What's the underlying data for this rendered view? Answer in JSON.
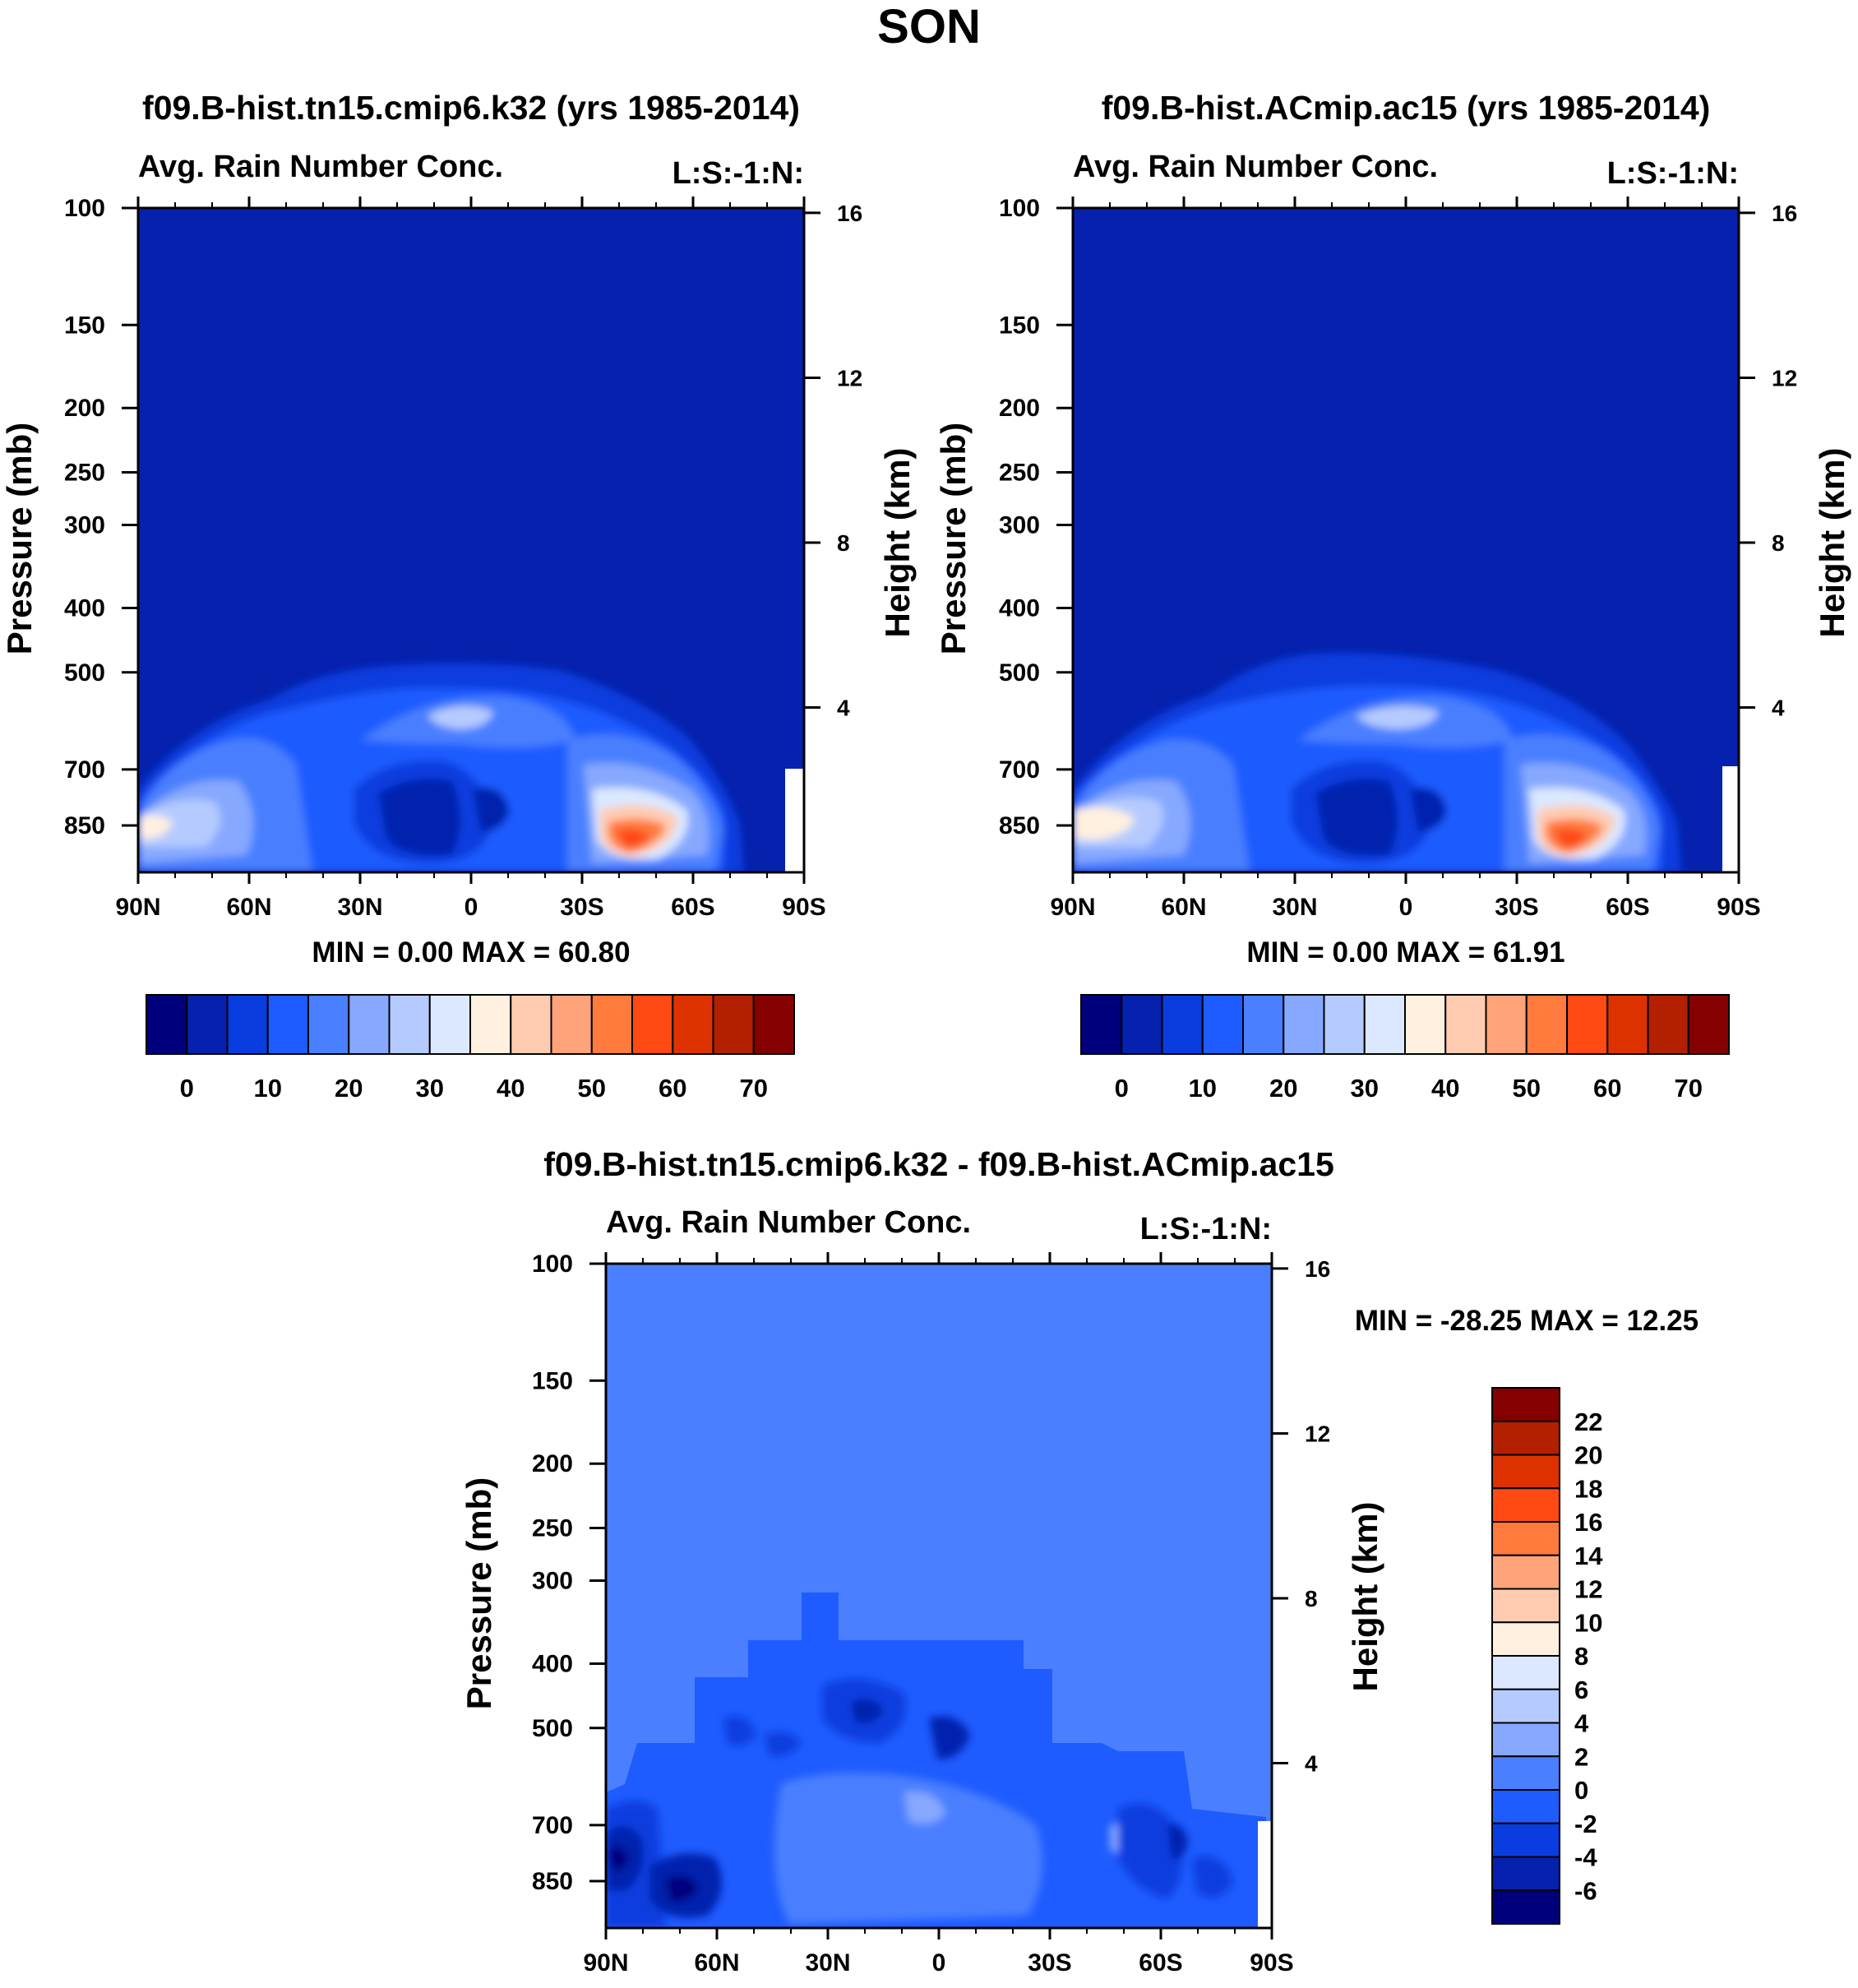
{
  "figure": {
    "title": "SON"
  },
  "colors": {
    "abs_palette": [
      "#00007d",
      "#0521ad",
      "#0a3ddf",
      "#1f5cff",
      "#4a7fff",
      "#86a8ff",
      "#b5cbff",
      "#dbe8ff",
      "#fff0df",
      "#ffcbb0",
      "#ffa47a",
      "#ff7a3d",
      "#ff4a14",
      "#dd3200",
      "#b22000",
      "#850000"
    ],
    "diff_palette": [
      "#00007d",
      "#0521ad",
      "#0a3ddf",
      "#1f5cff",
      "#4a7fff",
      "#86a8ff",
      "#b5cbff",
      "#dbe8ff",
      "#fff0df",
      "#ffcbb0",
      "#ffa47a",
      "#ff7a3d",
      "#ff4a14",
      "#dd3200",
      "#b22000",
      "#850000"
    ]
  },
  "chart_data": [
    {
      "type": "heatmap",
      "title": "f09.B-hist.tn15.cmip6.k32 (yrs 1985-2014)",
      "subtitle_left": "Avg. Rain Number Conc.",
      "subtitle_right": "L:S:-1:N:",
      "ylabel": "Pressure (mb)",
      "ylabel_right": "Height (km)",
      "x_ticks": [
        "90N",
        "60N",
        "30N",
        "0",
        "30S",
        "60S",
        "90S"
      ],
      "x_lim": [
        90,
        -90
      ],
      "y_ticks": [
        100,
        150,
        200,
        250,
        300,
        400,
        500,
        700,
        850
      ],
      "y_lim": [
        100,
        1000
      ],
      "height_ticks": [
        16,
        12,
        8,
        4
      ],
      "stats": "MIN =    0.00   MAX =  60.80",
      "min": 0.0,
      "max": 60.8,
      "colorbar_labels": [
        "0",
        "10",
        "20",
        "30",
        "40",
        "50",
        "60",
        "70"
      ],
      "colorbar_levels": [
        0,
        5,
        10,
        15,
        20,
        25,
        30,
        35,
        40,
        45,
        50,
        55,
        60,
        65,
        70
      ]
    },
    {
      "type": "heatmap",
      "title": "f09.B-hist.ACmip.ac15 (yrs 1985-2014)",
      "subtitle_left": "Avg. Rain Number Conc.",
      "subtitle_right": "L:S:-1:N:",
      "ylabel": "Pressure (mb)",
      "ylabel_right": "Height (km)",
      "x_ticks": [
        "90N",
        "60N",
        "30N",
        "0",
        "30S",
        "60S",
        "90S"
      ],
      "x_lim": [
        90,
        -90
      ],
      "y_ticks": [
        100,
        150,
        200,
        250,
        300,
        400,
        500,
        700,
        850
      ],
      "y_lim": [
        100,
        1000
      ],
      "height_ticks": [
        16,
        12,
        8,
        4
      ],
      "stats": "MIN =    0.00   MAX =  61.91",
      "min": 0.0,
      "max": 61.91,
      "colorbar_labels": [
        "0",
        "10",
        "20",
        "30",
        "40",
        "50",
        "60",
        "70"
      ],
      "colorbar_levels": [
        0,
        5,
        10,
        15,
        20,
        25,
        30,
        35,
        40,
        45,
        50,
        55,
        60,
        65,
        70
      ]
    },
    {
      "type": "heatmap",
      "title": "f09.B-hist.tn15.cmip6.k32 - f09.B-hist.ACmip.ac15",
      "subtitle_left": "Avg. Rain Number Conc.",
      "subtitle_right": "L:S:-1:N:",
      "ylabel": "Pressure (mb)",
      "ylabel_right": "Height (km)",
      "x_ticks": [
        "90N",
        "60N",
        "30N",
        "0",
        "30S",
        "60S",
        "90S"
      ],
      "x_lim": [
        90,
        -90
      ],
      "y_ticks": [
        100,
        150,
        200,
        250,
        300,
        400,
        500,
        700,
        850
      ],
      "y_lim": [
        100,
        1000
      ],
      "height_ticks": [
        16,
        12,
        8,
        4
      ],
      "stats": "MIN = -28.25   MAX =  12.25",
      "min": -28.25,
      "max": 12.25,
      "colorbar_labels": [
        "22",
        "20",
        "18",
        "16",
        "14",
        "12",
        "10",
        "8",
        "6",
        "4",
        "2",
        "0",
        "-2",
        "-4",
        "-6"
      ],
      "colorbar_levels": [
        22,
        20,
        18,
        16,
        14,
        12,
        10,
        8,
        6,
        4,
        2,
        0,
        -2,
        -4,
        -6
      ]
    }
  ]
}
